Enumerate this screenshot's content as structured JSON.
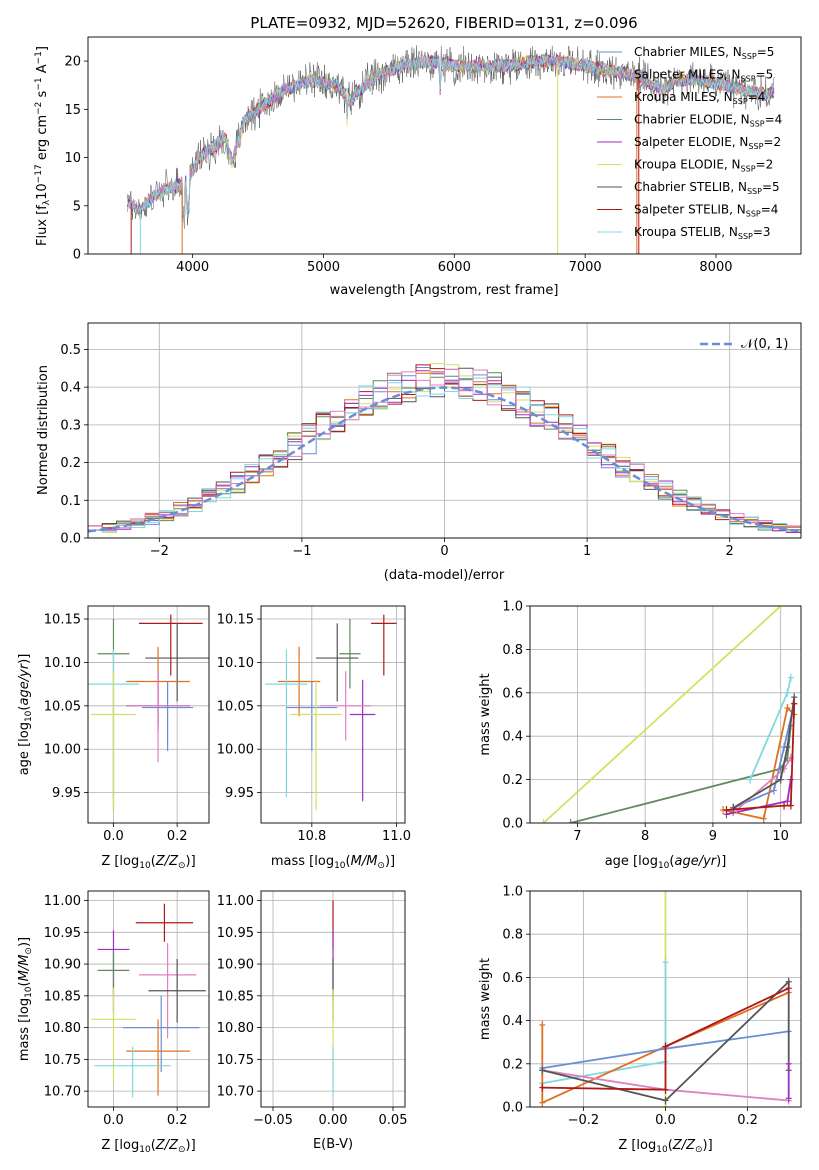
{
  "colors": {
    "blue": "#6a8ed6",
    "orange": "#e07020",
    "green": "#5e8a5e",
    "purple": "#9b30c0",
    "yellow": "#d6e060",
    "dark": "#555555",
    "red": "#b01818",
    "cyan": "#80d8e0",
    "pink": "#e080c0"
  },
  "chart_data": [
    {
      "type": "line",
      "title": "PLATE=0932, MJD=52620, FIBERID=0131, z=0.096",
      "xlabel": "wavelength [Angstrom, rest frame]",
      "ylabel_parts": [
        "Flux [f",
        "λ",
        "10",
        "−17",
        " erg cm",
        "−2",
        " s",
        "−1",
        " A",
        "−1",
        "]"
      ],
      "xlim": [
        3200,
        8650
      ],
      "ylim": [
        0,
        22.5
      ],
      "xticks": [
        4000,
        5000,
        6000,
        7000,
        8000
      ],
      "yticks": [
        0,
        5,
        10,
        15,
        20
      ],
      "grid": false,
      "legend_position": "right",
      "legend": [
        {
          "base": "Chabrier MILES, N",
          "n": "5",
          "color": "blue"
        },
        {
          "base": "Salpeter MILES, N",
          "n": "5",
          "color": "pink"
        },
        {
          "base": "Kroupa MILES, N",
          "n": "4",
          "color": "orange"
        },
        {
          "base": "Chabrier ELODIE, N",
          "n": "4",
          "color": "green"
        },
        {
          "base": "Salpeter ELODIE, N",
          "n": "2",
          "color": "purple"
        },
        {
          "base": "Kroupa ELODIE, N",
          "n": "2",
          "color": "yellow"
        },
        {
          "base": "Chabrier STELIB, N",
          "n": "5",
          "color": "dark"
        },
        {
          "base": "Salpeter STELIB, N",
          "n": "4",
          "color": "red"
        },
        {
          "base": "Kroupa STELIB, N",
          "n": "3",
          "color": "cyan"
        }
      ],
      "legend_sub": "SSP",
      "spectrum_anchors": [
        [
          3500,
          5.5
        ],
        [
          3600,
          4.5
        ],
        [
          3700,
          6
        ],
        [
          3850,
          7
        ],
        [
          3950,
          7.5
        ],
        [
          4050,
          10
        ],
        [
          4150,
          11
        ],
        [
          4250,
          12
        ],
        [
          4300,
          9.5
        ],
        [
          4400,
          14
        ],
        [
          4500,
          15
        ],
        [
          4700,
          17
        ],
        [
          4900,
          18
        ],
        [
          5100,
          17.5
        ],
        [
          5200,
          16
        ],
        [
          5400,
          18.5
        ],
        [
          5600,
          19.5
        ],
        [
          5800,
          20
        ],
        [
          6000,
          19.5
        ],
        [
          6200,
          19.5
        ],
        [
          6400,
          19.5
        ],
        [
          6600,
          20
        ],
        [
          6800,
          20
        ],
        [
          7000,
          19.5
        ],
        [
          7200,
          19
        ],
        [
          7400,
          18.5
        ],
        [
          7600,
          17
        ],
        [
          7700,
          18
        ],
        [
          7900,
          18
        ],
        [
          8200,
          17
        ],
        [
          8400,
          16.5
        ],
        [
          8450,
          17
        ]
      ]
    },
    {
      "type": "line",
      "xlabel": "(data-model)/error",
      "ylabel": "Normed distribution",
      "xlim": [
        -2.5,
        2.5
      ],
      "ylim": [
        0,
        0.57
      ],
      "xticks": [
        -2,
        -1,
        0,
        1,
        2
      ],
      "xticklabels": [
        "−2",
        "−1",
        "0",
        "1",
        "2"
      ],
      "yticks": [
        0,
        0.1,
        0.2,
        0.3,
        0.4,
        0.5
      ],
      "yticklabels": [
        "0.0",
        "0.1",
        "0.2",
        "0.3",
        "0.4",
        "0.5"
      ],
      "grid": true,
      "legend_position": "upper right",
      "legend": [
        {
          "label": "𝒩(0, 1)",
          "color": "blue",
          "style": "dashed"
        }
      ],
      "bin_width": 0.1,
      "histogram_series": [
        "blue",
        "orange",
        "green",
        "purple",
        "yellow",
        "dark",
        "red",
        "cyan",
        "pink"
      ]
    },
    {
      "type": "scatter",
      "xlabel": "Z [log₁₀(Z/Z⊙)]",
      "ylabel": "age  [log₁₀(age/yr)]",
      "xlim": [
        -0.08,
        0.3
      ],
      "ylim": [
        9.915,
        10.165
      ],
      "xticks": [
        0,
        0.2
      ],
      "xticklabels": [
        "0.0",
        "0.2"
      ],
      "yticks": [
        9.95,
        10.0,
        10.05,
        10.1,
        10.15
      ],
      "yticklabels": [
        "9.95",
        "10.00",
        "10.05",
        "10.10",
        "10.15"
      ],
      "grid": true,
      "points": [
        {
          "color": "green",
          "x": 0.0,
          "xerr": 0.05,
          "y": 10.11,
          "yerr": [
            0.18,
            0.04
          ]
        },
        {
          "color": "red",
          "x": 0.18,
          "xerr": 0.1,
          "y": 10.145,
          "yerr": [
            0.06,
            0.01
          ]
        },
        {
          "color": "dark",
          "x": 0.2,
          "xerr": 0.1,
          "y": 10.105,
          "yerr": [
            0.05,
            0.04
          ]
        },
        {
          "color": "orange",
          "x": 0.14,
          "xerr": 0.1,
          "y": 10.078,
          "yerr": [
            0.05,
            0.04
          ]
        },
        {
          "color": "cyan",
          "x": 0.0,
          "xerr": 0.08,
          "y": 10.075,
          "yerr": [
            0.13,
            0.04
          ]
        },
        {
          "color": "purple",
          "x": 0.14,
          "xerr": 0.1,
          "y": 10.05,
          "yerr": [
            0.03,
            0.04
          ]
        },
        {
          "color": "pink",
          "x": 0.14,
          "xerr": 0.1,
          "y": 10.05,
          "yerr": [
            0.065,
            0.04
          ]
        },
        {
          "color": "blue",
          "x": 0.17,
          "xerr": 0.08,
          "y": 10.048,
          "yerr": [
            0.05,
            0.03
          ]
        },
        {
          "color": "yellow",
          "x": 0.0,
          "xerr": 0.07,
          "y": 10.04,
          "yerr": [
            0.11,
            0.05
          ]
        }
      ]
    },
    {
      "type": "scatter",
      "xlabel": "mass [log₁₀(M/M⊙)]",
      "ylabel": "",
      "xlim": [
        10.68,
        11.02
      ],
      "ylim": [
        9.915,
        10.165
      ],
      "xticks": [
        10.8,
        11.0
      ],
      "xticklabels": [
        "10.8",
        "11.0"
      ],
      "yticks": [
        9.95,
        10.0,
        10.05,
        10.1,
        10.15
      ],
      "yticklabels": [
        "9.95",
        "10.00",
        "10.05",
        "10.10",
        "10.15"
      ],
      "grid": true,
      "points": [
        {
          "color": "green",
          "x": 10.89,
          "xerr": 0.025,
          "y": 10.11,
          "yerr": [
            0.04,
            0.04
          ]
        },
        {
          "color": "red",
          "x": 10.97,
          "xerr": 0.03,
          "y": 10.145,
          "yerr": [
            0.06,
            0.01
          ]
        },
        {
          "color": "dark",
          "x": 10.86,
          "xerr": 0.05,
          "y": 10.105,
          "yerr": [
            0.05,
            0.04
          ]
        },
        {
          "color": "orange",
          "x": 10.77,
          "xerr": 0.05,
          "y": 10.078,
          "yerr": [
            0.04,
            0.04
          ]
        },
        {
          "color": "cyan",
          "x": 10.74,
          "xerr": 0.05,
          "y": 10.075,
          "yerr": [
            0.13,
            0.04
          ]
        },
        {
          "color": "purple",
          "x": 10.92,
          "xerr": 0.03,
          "y": 10.04,
          "yerr": [
            0.1,
            0.04
          ]
        },
        {
          "color": "pink",
          "x": 10.88,
          "xerr": 0.06,
          "y": 10.05,
          "yerr": [
            0.04,
            0.04
          ]
        },
        {
          "color": "blue",
          "x": 10.8,
          "xerr": 0.06,
          "y": 10.048,
          "yerr": [
            0.05,
            0.03
          ]
        },
        {
          "color": "yellow",
          "x": 10.81,
          "xerr": 0.06,
          "y": 10.04,
          "yerr": [
            0.11,
            0.04
          ]
        }
      ]
    },
    {
      "type": "line",
      "xlabel": "age  [log₁₀(age/yr)]",
      "ylabel": "mass weight",
      "xlim": [
        6.3,
        10.3
      ],
      "ylim": [
        0,
        1
      ],
      "xticks": [
        7,
        8,
        9,
        10
      ],
      "yticks": [
        0,
        0.2,
        0.4,
        0.6,
        0.8,
        1.0
      ],
      "yticklabels": [
        "0.0",
        "0.2",
        "0.4",
        "0.6",
        "0.8",
        "1.0"
      ],
      "grid": true,
      "series": [
        {
          "color": "yellow",
          "points": [
            [
              6.5,
              0.0
            ],
            [
              10.0,
              1.0
            ]
          ]
        },
        {
          "color": "green",
          "points": [
            [
              6.9,
              0.0
            ],
            [
              10.0,
              0.25
            ],
            [
              10.1,
              0.3
            ],
            [
              10.15,
              0.45
            ]
          ]
        },
        {
          "color": "cyan",
          "points": [
            [
              9.55,
              0.2
            ],
            [
              10.1,
              0.6
            ],
            [
              10.15,
              0.67
            ]
          ]
        },
        {
          "color": "orange",
          "points": [
            [
              9.15,
              0.06
            ],
            [
              9.3,
              0.05
            ],
            [
              9.75,
              0.02
            ],
            [
              10.1,
              0.53
            ],
            [
              10.2,
              0.5
            ]
          ]
        },
        {
          "color": "blue",
          "points": [
            [
              9.3,
              0.07
            ],
            [
              9.9,
              0.15
            ],
            [
              10.05,
              0.35
            ],
            [
              10.2,
              0.55
            ]
          ]
        },
        {
          "color": "purple",
          "points": [
            [
              9.2,
              0.04
            ],
            [
              10.1,
              0.1
            ],
            [
              10.15,
              0.2
            ]
          ]
        },
        {
          "color": "pink",
          "points": [
            [
              9.35,
              0.06
            ],
            [
              10.05,
              0.25
            ],
            [
              10.15,
              0.3
            ]
          ]
        },
        {
          "color": "dark",
          "points": [
            [
              9.3,
              0.07
            ],
            [
              10.0,
              0.2
            ],
            [
              10.1,
              0.35
            ],
            [
              10.2,
              0.58
            ]
          ]
        },
        {
          "color": "red",
          "points": [
            [
              9.2,
              0.06
            ],
            [
              10.05,
              0.08
            ],
            [
              10.15,
              0.08
            ],
            [
              10.2,
              0.55
            ]
          ]
        }
      ]
    },
    {
      "type": "scatter",
      "xlabel": "Z [log₁₀(Z/Z⊙)]",
      "ylabel": "mass [log₁₀(M/M⊙)]",
      "xlim": [
        -0.08,
        0.3
      ],
      "ylim": [
        10.675,
        11.015
      ],
      "xticks": [
        0,
        0.2
      ],
      "xticklabels": [
        "0.0",
        "0.2"
      ],
      "yticks": [
        10.7,
        10.75,
        10.8,
        10.85,
        10.9,
        10.95,
        11.0
      ],
      "yticklabels": [
        "10.70",
        "10.75",
        "10.80",
        "10.85",
        "10.90",
        "10.95",
        "11.00"
      ],
      "grid": true,
      "points": [
        {
          "color": "red",
          "x": 0.16,
          "xerr": 0.09,
          "y": 10.965,
          "yerr": [
            0.03,
            0.03
          ]
        },
        {
          "color": "purple",
          "x": 0.0,
          "xerr": 0.05,
          "y": 10.923,
          "yerr": [
            0.1,
            0.03
          ]
        },
        {
          "color": "green",
          "x": 0.0,
          "xerr": 0.05,
          "y": 10.89,
          "yerr": [
            0.04,
            0.03
          ]
        },
        {
          "color": "pink",
          "x": 0.17,
          "xerr": 0.09,
          "y": 10.883,
          "yerr": [
            0.1,
            0.05
          ]
        },
        {
          "color": "dark",
          "x": 0.2,
          "xerr": 0.09,
          "y": 10.858,
          "yerr": [
            0.05,
            0.05
          ]
        },
        {
          "color": "yellow",
          "x": 0.0,
          "xerr": 0.07,
          "y": 10.813,
          "yerr": [
            0.1,
            0.05
          ]
        },
        {
          "color": "blue",
          "x": 0.15,
          "xerr": 0.12,
          "y": 10.8,
          "yerr": [
            0.07,
            0.05
          ]
        },
        {
          "color": "orange",
          "x": 0.14,
          "xerr": 0.1,
          "y": 10.763,
          "yerr": [
            0.07,
            0.05
          ]
        },
        {
          "color": "cyan",
          "x": 0.06,
          "xerr": 0.12,
          "y": 10.74,
          "yerr": [
            0.05,
            0.03
          ]
        }
      ]
    },
    {
      "type": "scatter",
      "xlabel": "E(B-V)",
      "ylabel": "",
      "xlim": [
        -0.06,
        0.06
      ],
      "ylim": [
        10.675,
        11.015
      ],
      "xticks": [
        -0.05,
        0,
        0.05
      ],
      "xticklabels": [
        "−0.05",
        "0.00",
        "0.05"
      ],
      "yticks": [
        10.7,
        10.75,
        10.8,
        10.85,
        10.9,
        10.95,
        11.0
      ],
      "yticklabels": [
        "10.70",
        "10.75",
        "10.80",
        "10.85",
        "10.90",
        "10.95",
        "11.00"
      ],
      "grid": true,
      "points": [
        {
          "color": "red",
          "x": 0,
          "xerr": 0,
          "y": 10.965,
          "yerr": [
            0.04,
            0.035
          ]
        },
        {
          "color": "purple",
          "x": 0,
          "xerr": 0,
          "y": 10.923,
          "yerr": [
            0.08,
            0.03
          ]
        },
        {
          "color": "dark",
          "x": 0,
          "xerr": 0,
          "y": 10.86,
          "yerr": [
            0.05,
            0.05
          ]
        },
        {
          "color": "yellow",
          "x": 0,
          "xerr": 0,
          "y": 10.81,
          "yerr": [
            0.1,
            0.05
          ]
        },
        {
          "color": "cyan",
          "x": 0,
          "xerr": 0,
          "y": 10.74,
          "yerr": [
            0.05,
            0.03
          ]
        }
      ]
    },
    {
      "type": "line",
      "xlabel": "Z [log₁₀(Z/Z⊙)]",
      "ylabel": "mass weight",
      "xlim": [
        -0.33,
        0.33
      ],
      "ylim": [
        0,
        1
      ],
      "xticks": [
        -0.2,
        0,
        0.2
      ],
      "xticklabels": [
        "−0.2",
        "0.0",
        "0.2"
      ],
      "yticks": [
        0,
        0.2,
        0.4,
        0.6,
        0.8,
        1.0
      ],
      "yticklabels": [
        "0.0",
        "0.2",
        "0.4",
        "0.6",
        "0.8",
        "1.0"
      ],
      "grid": true,
      "series": [
        {
          "color": "yellow",
          "points": [
            [
              0,
              0.0
            ],
            [
              0,
              1.0
            ]
          ]
        },
        {
          "color": "cyan",
          "points": [
            [
              -0.3,
              0.11
            ],
            [
              0,
              0.21
            ],
            [
              0,
              0.67
            ]
          ]
        },
        {
          "color": "orange",
          "points": [
            [
              -0.3,
              0.38
            ],
            [
              -0.3,
              0.02
            ],
            [
              0,
              0.28
            ],
            [
              0.3,
              0.53
            ]
          ]
        },
        {
          "color": "blue",
          "points": [
            [
              -0.3,
              0.18
            ],
            [
              0,
              0.27
            ],
            [
              0.3,
              0.35
            ]
          ]
        },
        {
          "color": "pink",
          "points": [
            [
              -0.3,
              0.17
            ],
            [
              0,
              0.08
            ],
            [
              0.3,
              0.03
            ]
          ]
        },
        {
          "color": "dark",
          "points": [
            [
              -0.3,
              0.17
            ],
            [
              0,
              0.03
            ],
            [
              0.3,
              0.58
            ],
            [
              0.3,
              0.17
            ]
          ]
        },
        {
          "color": "red",
          "points": [
            [
              -0.3,
              0.09
            ],
            [
              0,
              0.08
            ],
            [
              0,
              0.28
            ],
            [
              0.3,
              0.55
            ]
          ]
        },
        {
          "color": "purple",
          "points": [
            [
              0.3,
              0.04
            ],
            [
              0.3,
              0.2
            ]
          ]
        }
      ]
    }
  ]
}
